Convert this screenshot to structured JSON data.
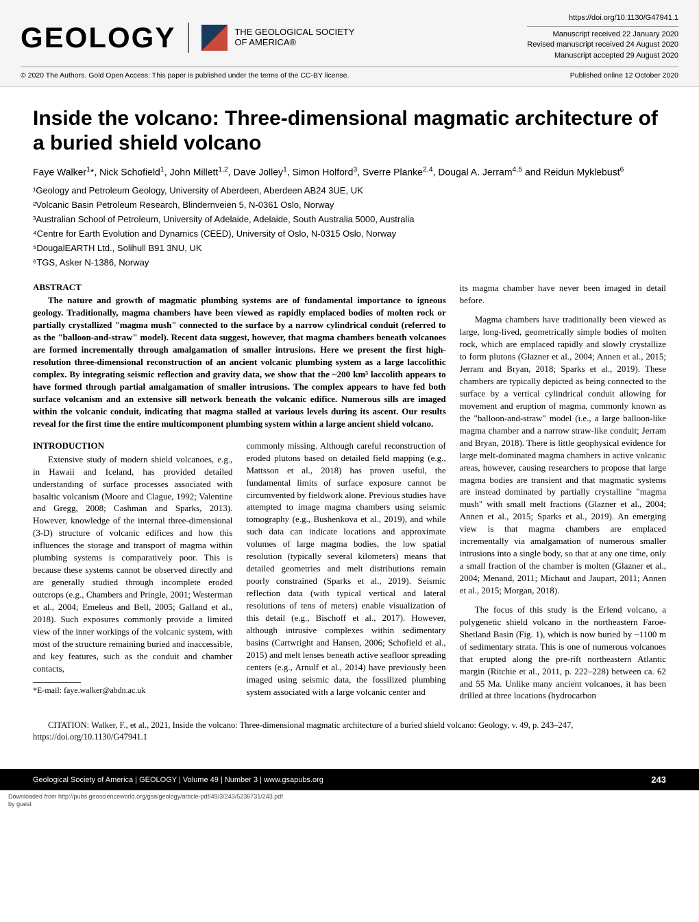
{
  "header": {
    "journal_logo": "GEOLOGY",
    "society_line1": "THE GEOLOGICAL SOCIETY",
    "society_line2": "OF AMERICA®",
    "doi": "https://doi.org/10.1130/G47941.1",
    "received": "Manuscript received 22 January 2020",
    "revised": "Revised manuscript received 24 August 2020",
    "accepted": "Manuscript accepted 29 August 2020",
    "license": "© 2020 The Authors. Gold Open Access: This paper is published under the terms of the CC-BY license.",
    "published_online": "Published online 12 October 2020"
  },
  "title": "Inside the volcano: Three-dimensional magmatic architecture of a buried shield volcano",
  "authors_html": "Faye Walker<sup>1</sup>*, Nick Schofield<sup>1</sup>, John Millett<sup>1,2</sup>, Dave Jolley<sup>1</sup>, Simon Holford<sup>3</sup>, Sverre Planke<sup>2,4</sup>, Dougal A. Jerram<sup>4,5</sup> and Reidun Myklebust<sup>6</sup>",
  "affiliations": [
    "¹Geology and Petroleum Geology, University of Aberdeen, Aberdeen AB24 3UE, UK",
    "²Volcanic Basin Petroleum Research, Blindernveien 5, N-0361 Oslo, Norway",
    "³Australian School of Petroleum, University of Adelaide, Adelaide, South Australia 5000, Australia",
    "⁴Centre for Earth Evolution and Dynamics (CEED), University of Oslo, N-0315 Oslo, Norway",
    "⁵DougalEARTH Ltd., Solihull B91 3NU, UK",
    "⁶TGS, Asker N-1386, Norway"
  ],
  "abstract_heading": "ABSTRACT",
  "abstract": "The nature and growth of magmatic plumbing systems are of fundamental importance to igneous geology. Traditionally, magma chambers have been viewed as rapidly emplaced bodies of molten rock or partially crystallized \"magma mush\" connected to the surface by a narrow cylindrical conduit (referred to as the \"balloon-and-straw\" model). Recent data suggest, however, that magma chambers beneath volcanoes are formed incrementally through amalgamation of smaller intrusions. Here we present the first high-resolution three-dimensional reconstruction of an ancient volcanic plumbing system as a large laccolithic complex. By integrating seismic reflection and gravity data, we show that the ~200 km³ laccolith appears to have formed through partial amalgamation of smaller intrusions. The complex appears to have fed both surface volcanism and an extensive sill network beneath the volcanic edifice. Numerous sills are imaged within the volcanic conduit, indicating that magma stalled at various levels during its ascent. Our results reveal for the first time the entire multicomponent plumbing system within a large ancient shield volcano.",
  "intro_heading": "INTRODUCTION",
  "intro_col1": "Extensive study of modern shield volcanoes, e.g., in Hawaii and Iceland, has provided detailed understanding of surface processes associated with basaltic volcanism (Moore and Clague, 1992; Valentine and Gregg, 2008; Cashman and Sparks, 2013). However, knowledge of the internal three-dimensional (3-D) structure of volcanic edifices and how this influences the storage and transport of magma within plumbing systems is comparatively poor. This is because these systems cannot be observed directly and are generally studied through incomplete eroded outcrops (e.g., Chambers and Pringle, 2001; Westerman et al., 2004; Emeleus and Bell, 2005; Galland et al., 2018). Such exposures commonly provide a limited view of the inner workings of the volcanic system, with most of the structure remaining buried and inaccessible, and key features, such as the conduit and chamber contacts,",
  "intro_col2": "commonly missing. Although careful reconstruction of eroded plutons based on detailed field mapping (e.g., Mattsson et al., 2018) has proven useful, the fundamental limits of surface exposure cannot be circumvented by fieldwork alone. Previous studies have attempted to image magma chambers using seismic tomography (e.g., Bushenkova et al., 2019), and while such data can indicate locations and approximate volumes of large magma bodies, the low spatial resolution (typically several kilometers) means that detailed geometries and melt distributions remain poorly constrained (Sparks et al., 2019). Seismic reflection data (with typical vertical and lateral resolutions of tens of meters) enable visualization of this detail (e.g., Bischoff et al., 2017). However, although intrusive complexes within sedimentary basins (Cartwright and Hansen, 2006; Schofield et al., 2015) and melt lenses beneath active seafloor spreading centers (e.g., Arnulf et al., 2014) have previously been imaged using seismic data, the fossilized plumbing system associated with a large volcanic center and",
  "right_para1": "its magma chamber have never been imaged in detail before.",
  "right_para2": "Magma chambers have traditionally been viewed as large, long-lived, geometrically simple bodies of molten rock, which are emplaced rapidly and slowly crystallize to form plutons (Glazner et al., 2004; Annen et al., 2015; Jerram and Bryan, 2018; Sparks et al., 2019). These chambers are typically depicted as being connected to the surface by a vertical cylindrical conduit allowing for movement and eruption of magma, commonly known as the \"balloon-and-straw\" model (i.e., a large balloon-like magma chamber and a narrow straw-like conduit; Jerram and Bryan, 2018). There is little geophysical evidence for large melt-dominated magma chambers in active volcanic areas, however, causing researchers to propose that large magma bodies are transient and that magmatic systems are instead dominated by partially crystalline \"magma mush\" with small melt fractions (Glazner et al., 2004; Annen et al., 2015; Sparks et al., 2019). An emerging view is that magma chambers are emplaced incrementally via amalgamation of numerous smaller intrusions into a single body, so that at any one time, only a small fraction of the chamber is molten (Glazner et al., 2004; Menand, 2011; Michaut and Jaupart, 2011; Annen et al., 2015; Morgan, 2018).",
  "right_para3": "The focus of this study is the Erlend volcano, a polygenetic shield volcano in the northeastern Faroe-Shetland Basin (Fig. 1), which is now buried by ~1100 m of sedimentary strata. This is one of numerous volcanoes that erupted along the pre-rift northeastern Atlantic margin (Ritchie et al., 2011, p. 222–228) between ca. 62 and 55 Ma. Unlike many ancient volcanoes, it has been drilled at three locations (hydrocarbon",
  "footnote": "*E-mail: faye.walker@abdn.ac.uk",
  "citation": "CITATION: Walker, F., et al., 2021, Inside the volcano: Three-dimensional magmatic architecture of a buried shield volcano: Geology, v. 49, p. 243–247, https://doi.org/10.1130/G47941.1",
  "footer": {
    "left": "Geological Society of America  |  GEOLOGY  |  Volume 49  |  Number 3  |  www.gsapubs.org",
    "page": "243"
  },
  "download": {
    "line1": "Downloaded from http://pubs.geoscienceworld.org/gsa/geology/article-pdf/49/3/243/5236731/243.pdf",
    "line2": "by guest"
  },
  "colors": {
    "header_bg": "#f5f5f5",
    "footer_bg": "#000000",
    "footer_text": "#ffffff",
    "gsa_blue": "#1a3a5c",
    "gsa_red": "#c94a3b"
  }
}
